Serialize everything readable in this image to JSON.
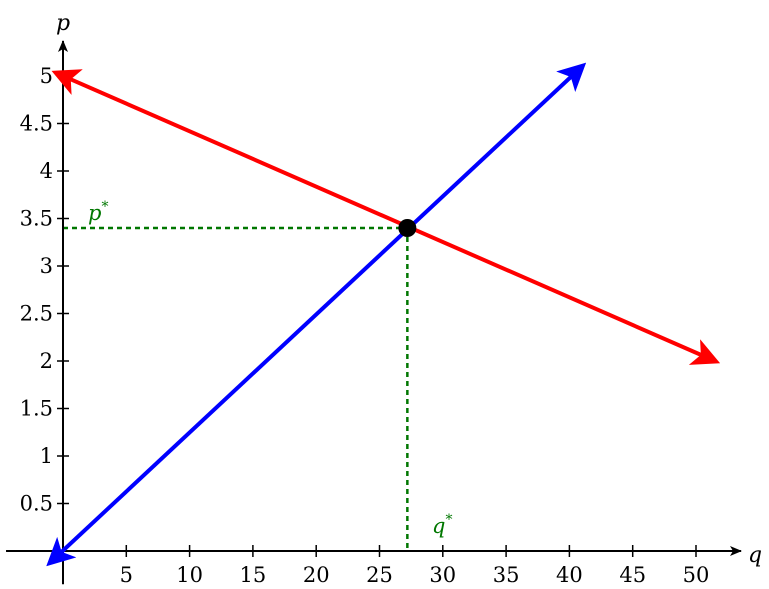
{
  "chart_data": {
    "type": "line",
    "x_axis_label": "q",
    "y_axis_label": "p",
    "xlim": [
      -4.5,
      53
    ],
    "ylim": [
      -0.35,
      5.45
    ],
    "x_ticks": [
      5,
      10,
      15,
      20,
      25,
      30,
      35,
      40,
      45,
      50
    ],
    "y_ticks": [
      0.5,
      1,
      1.5,
      2,
      2.5,
      3,
      3.5,
      4,
      4.5,
      5
    ],
    "x_tick_labels": [
      "5",
      "10",
      "15",
      "20",
      "25",
      "30",
      "35",
      "40",
      "45",
      "50"
    ],
    "y_tick_labels": [
      "0.5",
      "1",
      "1.5",
      "2",
      "2.5",
      "3",
      "3.5",
      "4",
      "4.5",
      "5"
    ],
    "grid": false,
    "series": [
      {
        "color": "#0000ff",
        "points": [
          [
            -1,
            -0.12
          ],
          [
            41,
            5.1
          ]
        ],
        "arrows": "both"
      },
      {
        "color": "#ff0000",
        "points": [
          [
            -0.5,
            5.03
          ],
          [
            51.5,
            2.0
          ]
        ],
        "arrows": "both"
      }
    ],
    "equilibrium": {
      "q": 27.2,
      "p": 3.4,
      "marker_color": "#000000",
      "guide_color": "#007700",
      "p_label": "p",
      "p_label_sup": "*",
      "q_label": "q",
      "q_label_sup": "*"
    }
  }
}
